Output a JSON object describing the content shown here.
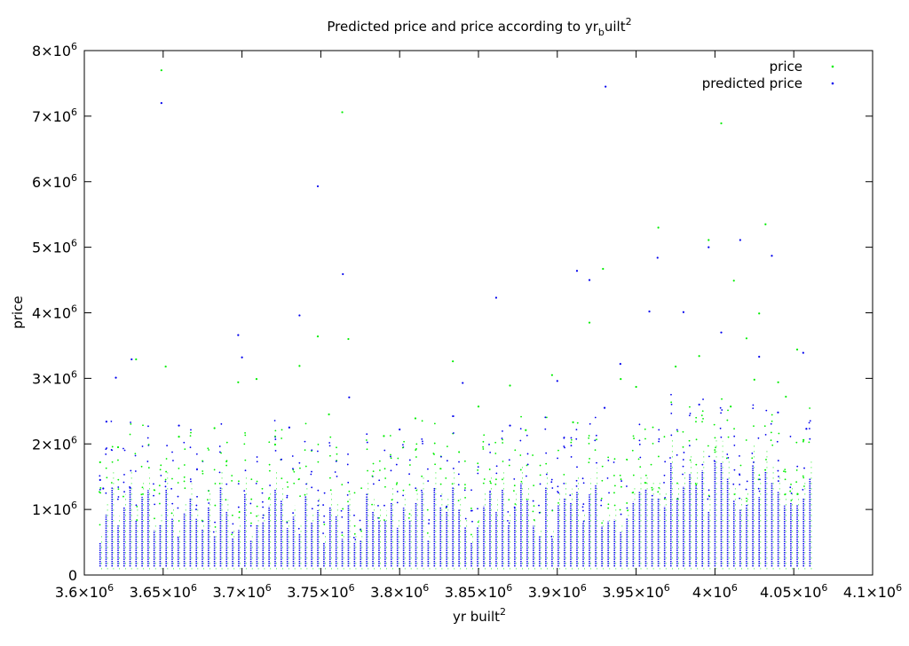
{
  "chart_data": {
    "type": "scatter",
    "title_main": "Predicted price and price according to yr",
    "title_sub": "b",
    "title_rest": "uilt",
    "title_sup": "2",
    "xlabel": "yr built",
    "xlabel_sup": "2",
    "ylabel": "price",
    "xlim": [
      3600000,
      4100000
    ],
    "ylim": [
      0,
      8000000
    ],
    "x_ticks": [
      {
        "value": 3600000,
        "mantissa": "3.6",
        "exp": "6"
      },
      {
        "value": 3650000,
        "mantissa": "3.65",
        "exp": "6"
      },
      {
        "value": 3700000,
        "mantissa": "3.7",
        "exp": "6"
      },
      {
        "value": 3750000,
        "mantissa": "3.75",
        "exp": "6"
      },
      {
        "value": 3800000,
        "mantissa": "3.8",
        "exp": "6"
      },
      {
        "value": 3850000,
        "mantissa": "3.85",
        "exp": "6"
      },
      {
        "value": 3900000,
        "mantissa": "3.9",
        "exp": "6"
      },
      {
        "value": 3950000,
        "mantissa": "3.95",
        "exp": "6"
      },
      {
        "value": 4000000,
        "mantissa": "4",
        "exp": "6"
      },
      {
        "value": 4050000,
        "mantissa": "4.05",
        "exp": "6"
      },
      {
        "value": 4100000,
        "mantissa": "4.1",
        "exp": "6"
      }
    ],
    "y_ticks": [
      {
        "value": 0,
        "mantissa": "0",
        "exp": ""
      },
      {
        "value": 1000000,
        "mantissa": "1",
        "exp": "6"
      },
      {
        "value": 2000000,
        "mantissa": "2",
        "exp": "6"
      },
      {
        "value": 3000000,
        "mantissa": "3",
        "exp": "6"
      },
      {
        "value": 4000000,
        "mantissa": "4",
        "exp": "6"
      },
      {
        "value": 5000000,
        "mantissa": "5",
        "exp": "6"
      },
      {
        "value": 6000000,
        "mantissa": "6",
        "exp": "6"
      },
      {
        "value": 7000000,
        "mantissa": "7",
        "exp": "6"
      },
      {
        "value": 8000000,
        "mantissa": "8",
        "exp": "6"
      }
    ],
    "grid": false,
    "legend_position": "top-right",
    "series": [
      {
        "name": "price",
        "color": "#00ee00",
        "points": [
          [
            3648900,
            7700000
          ],
          [
            3763600,
            7060000
          ],
          [
            4004001,
            6890000
          ],
          [
            4032064,
            5350000
          ],
          [
            3964081,
            5300000
          ],
          [
            3996001,
            5110000
          ],
          [
            3748096,
            3640000
          ],
          [
            3767481,
            3600000
          ],
          [
            3928996,
            4670000
          ],
          [
            3920400,
            3850000
          ],
          [
            4012009,
            4490000
          ],
          [
            4028049,
            3990000
          ],
          [
            3632836,
            3290000
          ],
          [
            3651600,
            3180000
          ],
          [
            3697600,
            2940000
          ],
          [
            3736489,
            3190000
          ],
          [
            3833764,
            3260000
          ],
          [
            3870000,
            2890000
          ],
          [
            3896676,
            3050000
          ],
          [
            3940225,
            2990000
          ],
          [
            3975076,
            3180000
          ],
          [
            4020025,
            3610000
          ],
          [
            4040100,
            2940000
          ],
          [
            4052169,
            3440000
          ],
          [
            3610000,
            1720000
          ],
          [
            3621409,
            1950000
          ],
          [
            3660000,
            2110000
          ],
          [
            3682561,
            2240000
          ],
          [
            3709225,
            2990000
          ],
          [
            3721000,
            1990000
          ],
          [
            3755161,
            2450000
          ],
          [
            3790000,
            2120000
          ],
          [
            3810000,
            2390000
          ],
          [
            3850000,
            2570000
          ],
          [
            3880000,
            2210000
          ],
          [
            3910000,
            2330000
          ],
          [
            3950000,
            2870000
          ],
          [
            3990000,
            3340000
          ],
          [
            4010000,
            2570000
          ],
          [
            4025000,
            2980000
          ],
          [
            4045000,
            2720000
          ],
          [
            4056196,
            2060000
          ]
        ]
      },
      {
        "name": "predicted price",
        "color": "#0000ee",
        "points": [
          [
            3648900,
            7200000
          ],
          [
            3930625,
            7450000
          ],
          [
            3748096,
            5930000
          ],
          [
            4016016,
            5110000
          ],
          [
            3996001,
            5000000
          ],
          [
            4036081,
            4870000
          ],
          [
            3963600,
            4840000
          ],
          [
            3912484,
            4640000
          ],
          [
            3920400,
            4500000
          ],
          [
            3764000,
            4590000
          ],
          [
            3861225,
            4230000
          ],
          [
            3736489,
            3960000
          ],
          [
            3697600,
            3660000
          ],
          [
            3980025,
            4010000
          ],
          [
            3958400,
            4020000
          ],
          [
            4004001,
            3700000
          ],
          [
            3630000,
            3290000
          ],
          [
            3620000,
            3010000
          ],
          [
            3700000,
            3320000
          ],
          [
            3768000,
            2710000
          ],
          [
            3840000,
            2930000
          ],
          [
            3900000,
            2960000
          ],
          [
            3940000,
            3220000
          ],
          [
            4028049,
            3330000
          ],
          [
            4056000,
            3390000
          ],
          [
            3614000,
            2340000
          ],
          [
            3660000,
            2280000
          ],
          [
            3730000,
            2250000
          ],
          [
            3800000,
            2220000
          ],
          [
            3870000,
            2280000
          ],
          [
            3930000,
            2550000
          ],
          [
            3990000,
            2600000
          ],
          [
            4040000,
            2480000
          ],
          [
            3610000,
            1450000
          ],
          [
            3612000,
            1320000
          ],
          [
            4058000,
            2230000
          ]
        ]
      }
    ],
    "legend": [
      {
        "label": "price",
        "color": "#00ee00"
      },
      {
        "label": "predicted price",
        "color": "#0000ee"
      }
    ]
  }
}
